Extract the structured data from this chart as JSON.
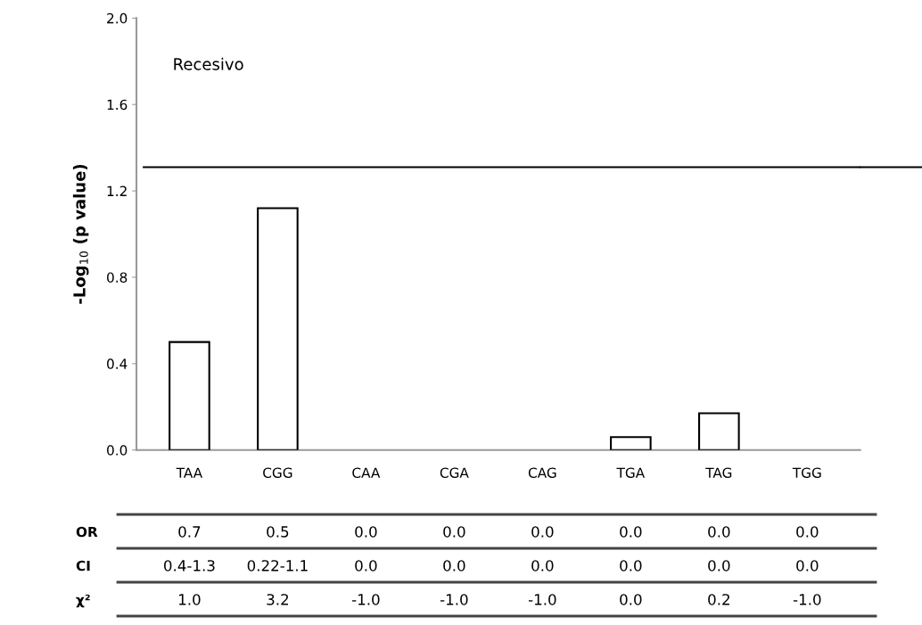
{
  "chart_data": {
    "type": "bar",
    "ylabel": "-Log$_{10}$ (p value)",
    "categories": [
      "TAA",
      "CGG",
      "CAA",
      "CGA",
      "CAG",
      "TGA",
      "TAG",
      "TGG"
    ],
    "values": [
      0.5,
      1.12,
      0,
      0,
      0,
      0.06,
      0.17,
      0
    ],
    "color": "#ffffff",
    "ylim": [
      0,
      2.0
    ],
    "yticks": [
      {
        "value": 0,
        "label": "0.0"
      },
      {
        "value": 0.4,
        "label": "0.4"
      },
      {
        "value": 0.8,
        "label": "0.8"
      },
      {
        "value": 1.2,
        "label": "1.2"
      },
      {
        "value": 1.6,
        "label": "1.6"
      },
      {
        "value": 2.0,
        "label": "2.0"
      }
    ],
    "ref_lines": [
      {
        "axis": "y",
        "value": 1.31,
        "color": "#000000"
      }
    ],
    "grid": false,
    "legend": false,
    "annotations": [
      "Recesivo",
      "OR",
      "0.7",
      "0.5",
      "0.0",
      "0.0",
      "0.0",
      "0.0",
      "0.0",
      "0.0",
      "CI",
      "0.4-1.3",
      "0.22-1.1",
      "0.0",
      "0.0",
      "0.0",
      "0.0",
      "0.0",
      "0.0",
      "χ²",
      "1.0",
      "3.2",
      "-1.0",
      "-1.0",
      "-1.0",
      "0.0",
      "0.2",
      "-1.0"
    ]
  }
}
